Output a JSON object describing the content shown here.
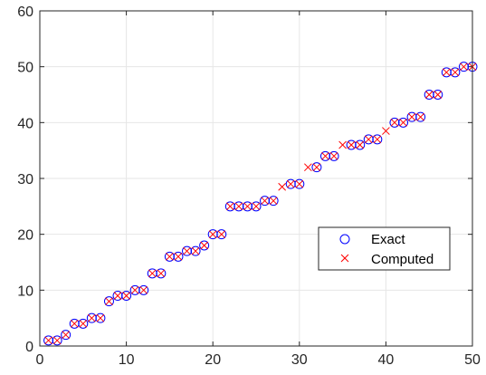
{
  "chart_data": {
    "type": "scatter",
    "xlim": [
      0,
      50
    ],
    "ylim": [
      0,
      60
    ],
    "xticks": [
      "0",
      "10",
      "20",
      "30",
      "40",
      "50"
    ],
    "yticks": [
      "0",
      "10",
      "20",
      "30",
      "40",
      "50",
      "60"
    ],
    "grid": true,
    "legend_position": "lower-right",
    "series": [
      {
        "name": "Exact",
        "marker": "circle",
        "color": "#0000ff",
        "x": [
          1,
          2,
          3,
          4,
          5,
          6,
          7,
          8,
          9,
          10,
          11,
          12,
          13,
          14,
          15,
          16,
          17,
          18,
          19,
          20,
          21,
          22,
          23,
          24,
          25,
          26,
          27,
          29,
          30,
          32,
          33,
          34,
          36,
          37,
          38,
          39,
          41,
          42,
          43,
          44,
          45,
          46,
          47,
          48,
          49,
          50
        ],
        "y": [
          1,
          1,
          2,
          4,
          4,
          5,
          5,
          8,
          9,
          9,
          10,
          10,
          13,
          13,
          16,
          16,
          17,
          17,
          18,
          20,
          20,
          25,
          25,
          25,
          25,
          26,
          26,
          29,
          29,
          32,
          34,
          34,
          36,
          36,
          37,
          37,
          40,
          40,
          41,
          41,
          45,
          45,
          49,
          49,
          50,
          50
        ]
      },
      {
        "name": "Computed",
        "marker": "x",
        "color": "#ff0000",
        "x": [
          1,
          2,
          3,
          4,
          5,
          6,
          7,
          8,
          9,
          10,
          11,
          12,
          13,
          14,
          15,
          16,
          17,
          18,
          19,
          20,
          21,
          22,
          23,
          24,
          25,
          26,
          27,
          28,
          29,
          30,
          31,
          32,
          33,
          34,
          35,
          36,
          37,
          38,
          39,
          40,
          41,
          42,
          43,
          44,
          45,
          46,
          47,
          48,
          49,
          50
        ],
        "y": [
          1,
          1,
          2,
          4,
          4,
          5,
          5,
          8,
          9,
          9,
          10,
          10,
          13,
          13,
          16,
          16,
          17,
          17,
          18,
          20,
          20,
          25,
          25,
          25,
          25,
          26,
          26,
          28.5,
          29,
          29,
          32,
          32,
          34,
          34,
          36,
          36,
          36,
          37,
          37,
          38.5,
          40,
          40,
          41,
          41,
          45,
          45,
          49,
          49,
          50,
          50
        ]
      }
    ]
  }
}
